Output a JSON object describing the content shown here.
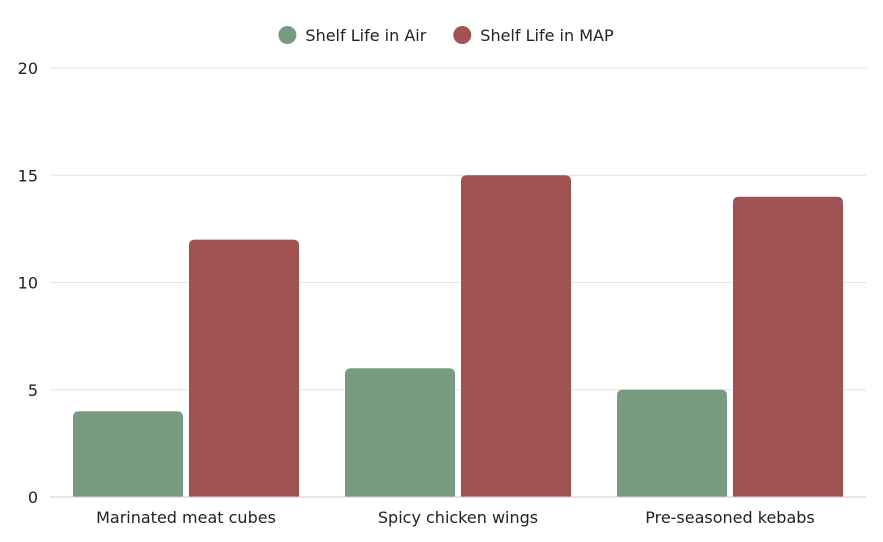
{
  "chart_data": {
    "type": "bar",
    "title": "",
    "xlabel": "",
    "ylabel": "",
    "categories": [
      "Marinated meat cubes",
      "Spicy chicken wings",
      "Pre-seasoned kebabs"
    ],
    "series": [
      {
        "name": "Shelf Life in Air",
        "values": [
          4,
          6,
          5
        ],
        "color": "#789a7e"
      },
      {
        "name": "Shelf Life in MAP",
        "values": [
          12,
          15,
          14
        ],
        "color": "#a15252"
      }
    ],
    "ylim": [
      0,
      20
    ],
    "yticks": [
      0,
      5,
      10,
      15,
      20
    ],
    "grid": true,
    "legend_position": "top-center"
  }
}
